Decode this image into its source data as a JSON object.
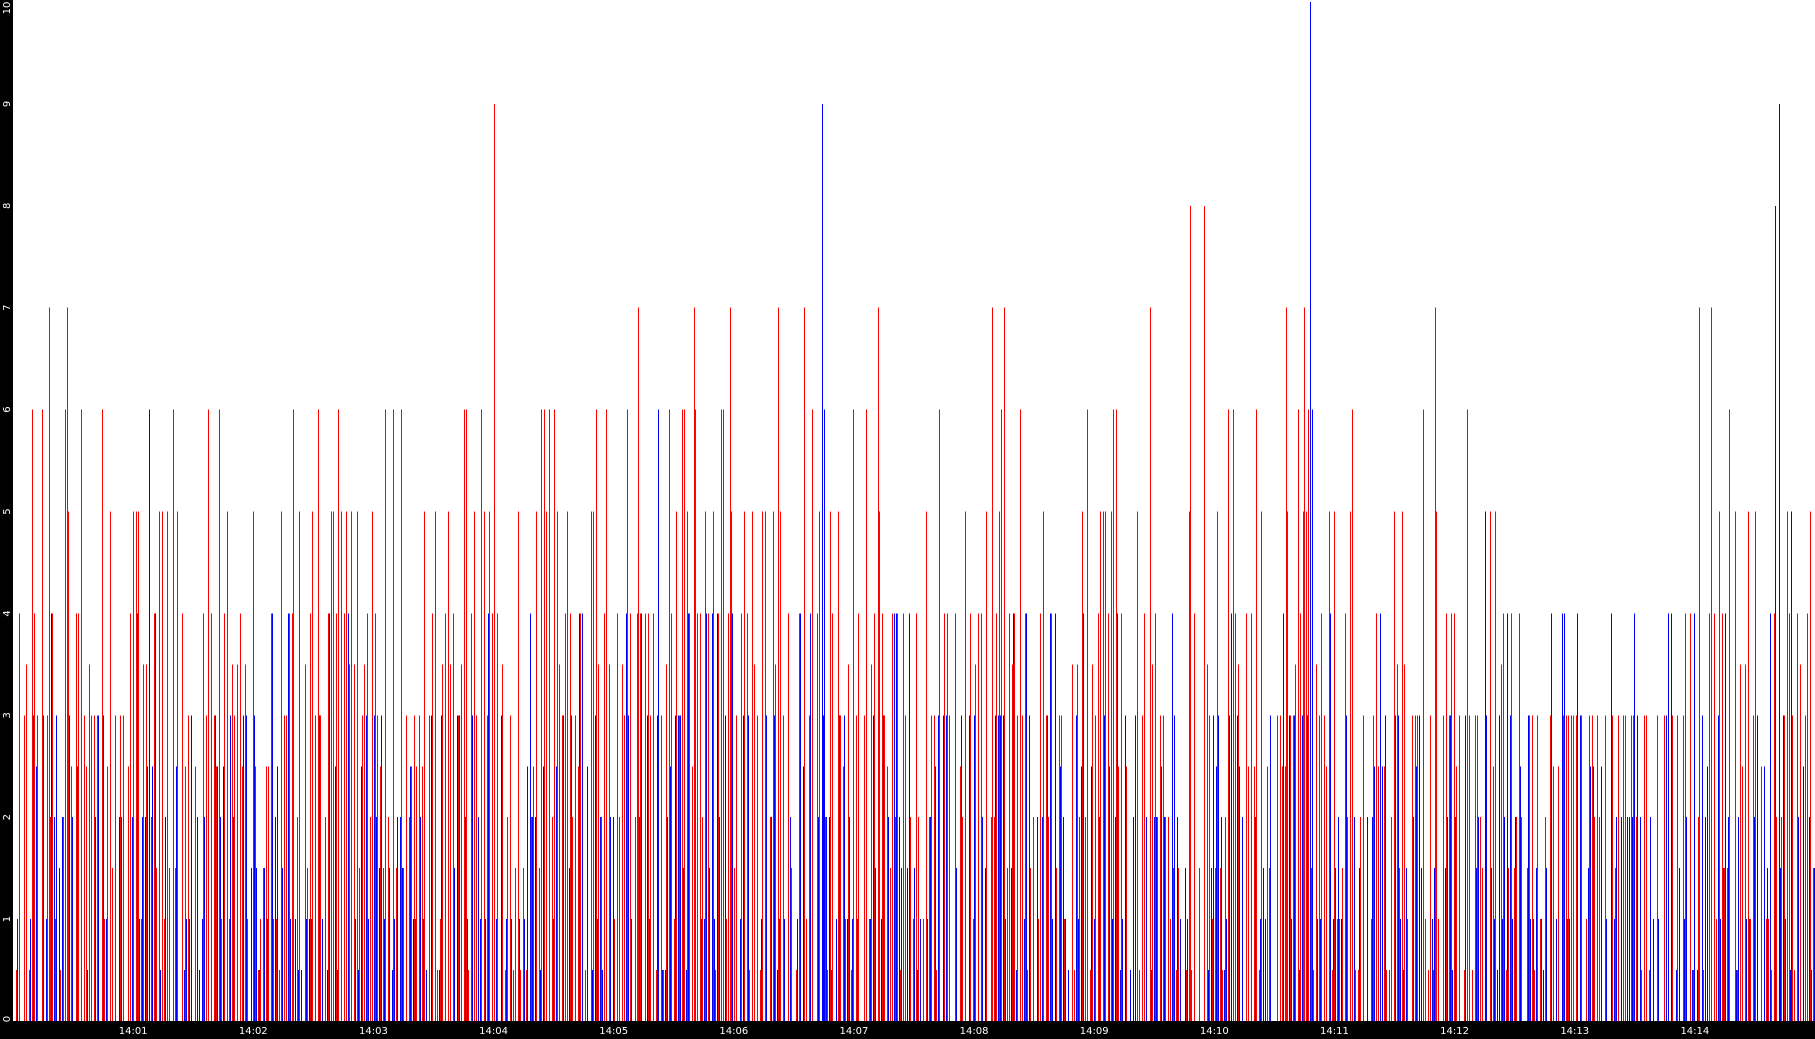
{
  "chart_data": {
    "type": "bar",
    "title": "",
    "xlabel": "",
    "ylabel": "",
    "ylim": [
      0,
      10
    ],
    "xlim": [
      "14:00",
      "14:15"
    ],
    "grid": false,
    "legend": "none",
    "y_ticks": [
      "0",
      "1",
      "2",
      "3",
      "4",
      "5",
      "6",
      "7",
      "8",
      "9",
      "10"
    ],
    "x_ticks": [
      "14:01",
      "14:02",
      "14:03",
      "14:04",
      "14:05",
      "14:06",
      "14:07",
      "14:08",
      "14:09",
      "14:10",
      "14:11",
      "14:12",
      "14:13",
      "14:14"
    ],
    "series_colors": [
      "#ff0000",
      "#0000ff"
    ],
    "axis_background": "#000000",
    "tick_text_color": "#ffffff",
    "series": [
      {
        "color": "#ff0000",
        "peaks": [
          {
            "x": "14:00:18",
            "y": 7
          },
          {
            "x": "14:00:27",
            "y": 7
          },
          {
            "x": "14:01:20",
            "y": 6
          },
          {
            "x": "14:02:20",
            "y": 6
          },
          {
            "x": "14:03:10",
            "y": 6
          },
          {
            "x": "14:03:45",
            "y": 6
          },
          {
            "x": "14:04:00",
            "y": 9
          },
          {
            "x": "14:04:30",
            "y": 6
          },
          {
            "x": "14:05:12",
            "y": 7
          },
          {
            "x": "14:05:40",
            "y": 7
          },
          {
            "x": "14:05:58",
            "y": 7
          },
          {
            "x": "14:06:22",
            "y": 7
          },
          {
            "x": "14:06:35",
            "y": 7
          },
          {
            "x": "14:07:12",
            "y": 7
          },
          {
            "x": "14:08:09",
            "y": 7
          },
          {
            "x": "14:08:15",
            "y": 7
          },
          {
            "x": "14:09:28",
            "y": 7
          },
          {
            "x": "14:09:48",
            "y": 8
          },
          {
            "x": "14:09:55",
            "y": 8
          },
          {
            "x": "14:10:36",
            "y": 7
          },
          {
            "x": "14:10:45",
            "y": 7
          },
          {
            "x": "14:11:50",
            "y": 7
          },
          {
            "x": "14:14:02",
            "y": 7
          },
          {
            "x": "14:14:08",
            "y": 7
          }
        ]
      },
      {
        "color": "#0000ff",
        "peaks": [
          {
            "x": "14:01:08",
            "y": 6
          },
          {
            "x": "14:05:22",
            "y": 6
          },
          {
            "x": "14:06:44",
            "y": 9
          },
          {
            "x": "14:06:45",
            "y": 6
          },
          {
            "x": "14:10:48",
            "y": 10
          },
          {
            "x": "14:10:49",
            "y": 6
          },
          {
            "x": "14:12:15",
            "y": 5
          },
          {
            "x": "14:14:40",
            "y": 8
          },
          {
            "x": "14:14:42",
            "y": 9
          },
          {
            "x": "14:14:48",
            "y": 5
          }
        ]
      }
    ]
  }
}
